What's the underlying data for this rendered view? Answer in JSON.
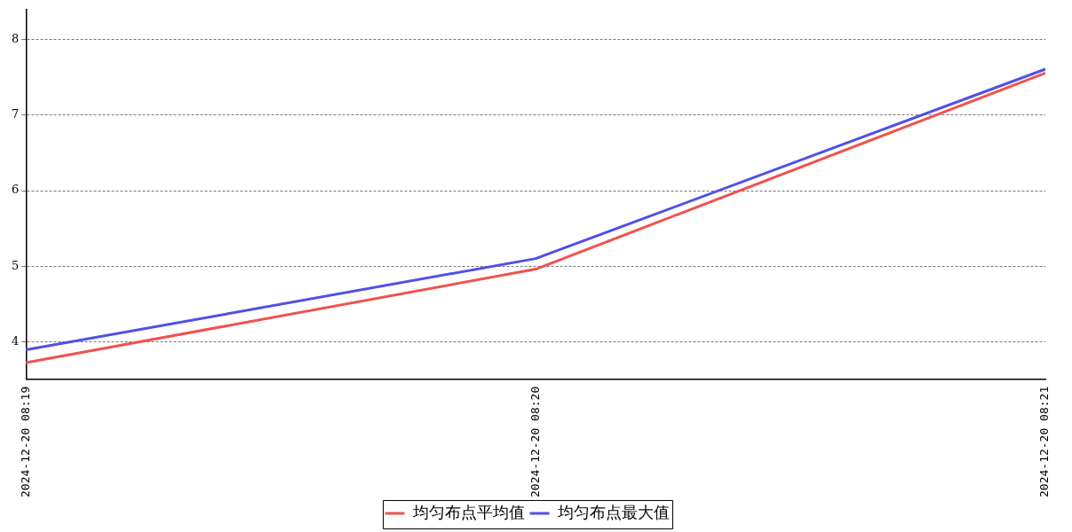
{
  "chart_data": {
    "type": "line",
    "categories": [
      "2024-12-20 08:19",
      "2024-12-20 08:20",
      "2024-12-20 08:21"
    ],
    "series": [
      {
        "name": "均匀布点平均值",
        "color": "#ef5350",
        "values": [
          3.72,
          4.96,
          7.56
        ]
      },
      {
        "name": "均匀布点最大值",
        "color": "#5050e8",
        "values": [
          3.89,
          5.1,
          7.61
        ]
      }
    ],
    "ylim": [
      3.5,
      8.4
    ],
    "yticks": [
      4,
      5,
      6,
      7,
      8
    ],
    "grid": "y",
    "legend": "bottom",
    "marker": "none",
    "line_style": "solid"
  }
}
